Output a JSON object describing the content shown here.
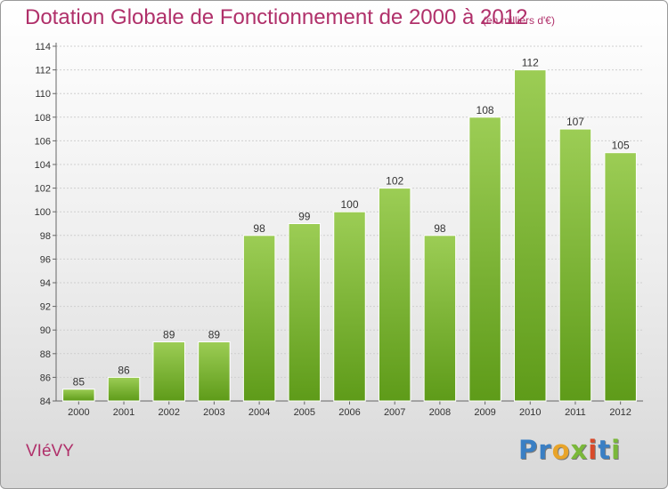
{
  "header": {
    "title": "Dotation Globale de Fonctionnement de 2000 à 2012",
    "unit": "(en milliers d'€)"
  },
  "footer": {
    "commune": "VIéVY",
    "logo_letters": [
      {
        "ch": "P",
        "color": "#3a7fc4"
      },
      {
        "ch": "r",
        "color": "#3a7fc4"
      },
      {
        "ch": "o",
        "color": "#e8a42a"
      },
      {
        "ch": "x",
        "color": "#7ab83a"
      },
      {
        "ch": "i",
        "color": "#d94a2a"
      },
      {
        "ch": "t",
        "color": "#3a7fc4"
      },
      {
        "ch": "i",
        "color": "#7ab83a"
      }
    ]
  },
  "colors": {
    "title": "#b0306a",
    "bar_top": "#9ccd55",
    "bar_bottom": "#5e9b19",
    "grid": "#cfcfcf"
  },
  "chart_data": {
    "type": "bar",
    "title": "Dotation Globale de Fonctionnement de 2000 à 2012",
    "subtitle": "(en milliers d'€)",
    "xlabel": "",
    "ylabel": "",
    "categories": [
      "2000",
      "2001",
      "2002",
      "2003",
      "2004",
      "2005",
      "2006",
      "2007",
      "2008",
      "2009",
      "2010",
      "2011",
      "2012"
    ],
    "values": [
      85,
      86,
      89,
      89,
      98,
      99,
      100,
      102,
      98,
      108,
      112,
      107,
      105
    ],
    "ylim": [
      84,
      114
    ],
    "yticks": [
      84,
      86,
      88,
      90,
      92,
      94,
      96,
      98,
      100,
      102,
      104,
      106,
      108,
      110,
      112,
      114
    ],
    "grid": true,
    "data_labels": true
  }
}
